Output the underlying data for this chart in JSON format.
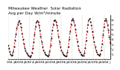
{
  "title": "Milwaukee Weather  Solar Radiation\nAvg per Day W/m²/minute",
  "title_fontsize": 4.2,
  "bg_color": "#ffffff",
  "line_color": "#cc0000",
  "dot_color": "#000000",
  "ylim": [
    0,
    9
  ],
  "yticks": [
    1,
    2,
    3,
    4,
    5,
    6,
    7,
    8
  ],
  "ytick_fontsize": 3.2,
  "xtick_fontsize": 2.8,
  "grid_color": "#888888",
  "values": [
    2.8,
    2.2,
    1.5,
    0.9,
    0.6,
    0.8,
    1.5,
    2.5,
    3.8,
    5.0,
    6.2,
    7.0,
    7.5,
    7.8,
    7.2,
    6.4,
    5.2,
    4.0,
    3.0,
    2.2,
    1.6,
    1.2,
    0.9,
    0.7,
    0.5,
    0.4,
    0.6,
    1.2,
    2.2,
    3.5,
    5.0,
    6.5,
    7.5,
    7.8,
    7.5,
    6.8,
    5.8,
    4.6,
    3.5,
    2.5,
    1.8,
    1.3,
    1.0,
    0.8,
    0.6,
    0.5,
    0.8,
    1.5,
    2.8,
    4.2,
    5.8,
    7.0,
    7.8,
    8.0,
    7.6,
    6.8,
    5.8,
    4.6,
    3.5,
    2.5,
    1.8,
    1.3,
    1.0,
    0.8,
    0.6,
    0.5,
    0.7,
    1.4,
    2.5,
    4.0,
    5.5,
    7.0,
    8.0,
    8.2,
    7.8,
    7.0,
    6.0,
    4.8,
    3.6,
    2.6,
    1.8,
    1.3,
    1.0,
    0.8,
    0.6,
    0.7,
    1.2,
    2.2,
    3.8,
    5.5,
    7.0,
    8.0,
    8.2,
    7.6,
    6.8,
    5.6,
    4.5,
    3.5,
    2.5,
    1.8,
    1.3,
    1.0,
    0.8,
    0.7,
    1.0,
    1.8,
    3.0,
    4.8,
    6.5,
    7.8,
    8.2,
    7.8,
    7.0,
    5.8,
    4.5,
    3.2
  ],
  "vgrid_positions": [
    0,
    12,
    24,
    36,
    48,
    60,
    72,
    84,
    96,
    108
  ],
  "xtick_step": 2
}
